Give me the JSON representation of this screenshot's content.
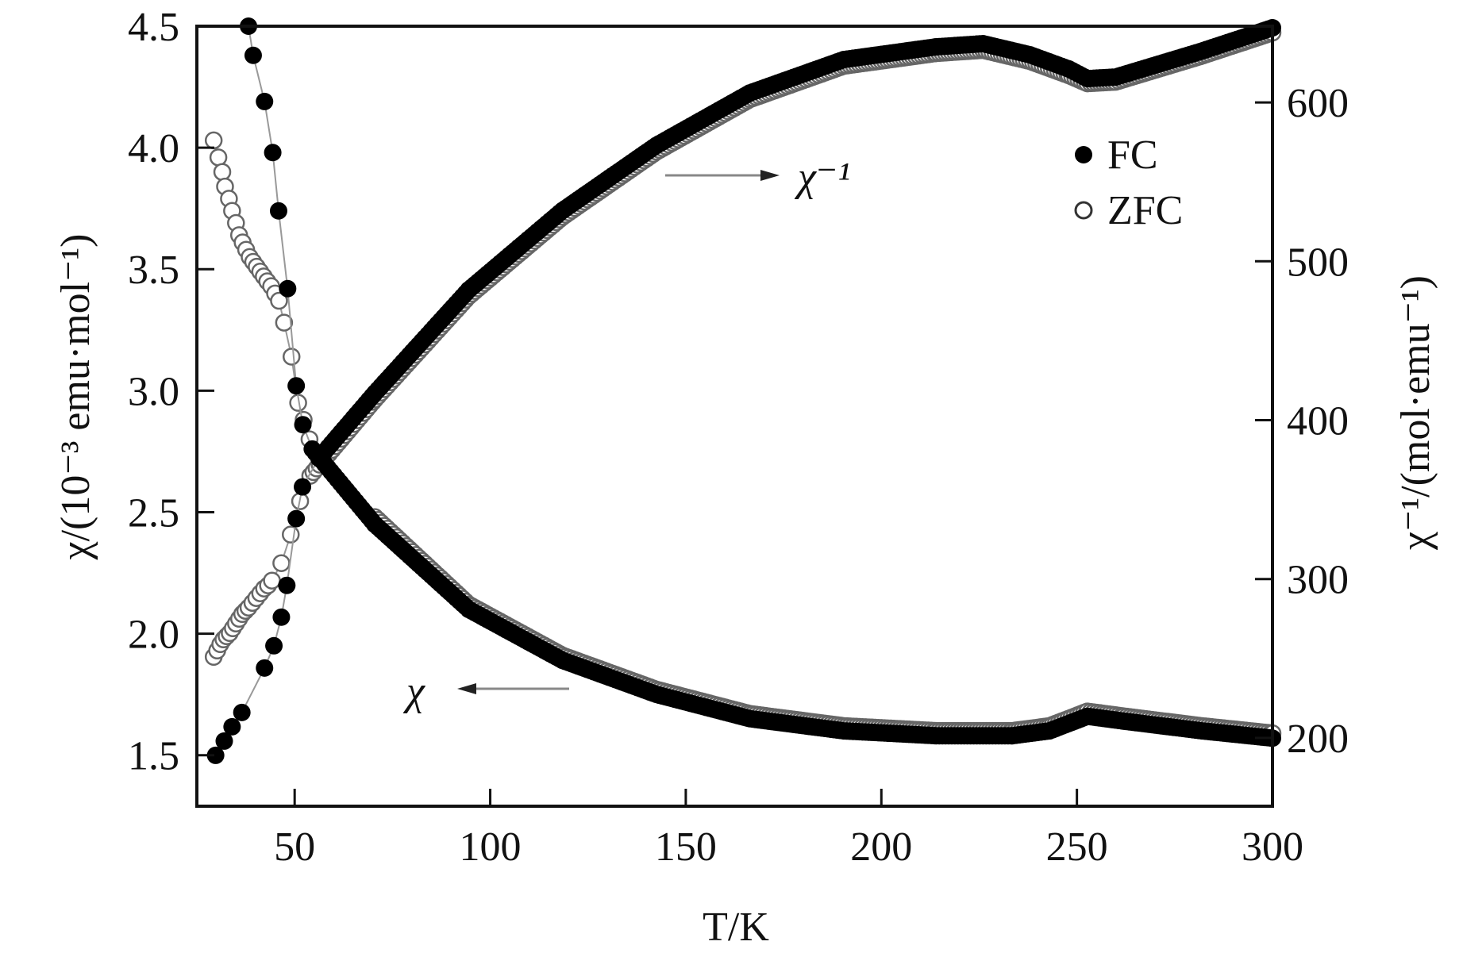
{
  "chart_data": {
    "type": "scatter",
    "title": "",
    "xlabel": "T/K",
    "ylabel_left": "χ/(10⁻³ emu·mol⁻¹)",
    "ylabel_right": "χ⁻¹/(mol·emu⁻¹)",
    "xlim": [
      25,
      300
    ],
    "ylim_left": [
      1.29,
      4.5
    ],
    "ylim_right": [
      157,
      648
    ],
    "xticks": [
      "50",
      "100",
      "150",
      "200",
      "250",
      "300"
    ],
    "yticks_left": [
      "1.5",
      "2.0",
      "2.5",
      "3.0",
      "3.5",
      "4.0",
      "4.5"
    ],
    "yticks_right": [
      "200",
      "300",
      "400",
      "500",
      "600"
    ],
    "grid": false,
    "legend": {
      "placement": "top-right",
      "entries": [
        "FC",
        "ZFC"
      ]
    },
    "annotations": {
      "chi_inv": "χ⁻¹",
      "chi": "χ"
    },
    "continuous_above_T": 55,
    "series": [
      {
        "name": "FC χ",
        "axis": "left",
        "marker": "filled",
        "x": [
          38.2,
          39.4,
          42.3,
          44.4,
          45.9,
          48.2,
          50.4,
          52.1,
          54.5,
          70.5,
          94.5,
          118.5,
          142.5,
          166.4,
          190.4,
          214,
          233.5,
          243,
          252.7,
          262,
          282,
          300
        ],
        "y": [
          4.5,
          4.38,
          4.19,
          3.98,
          3.74,
          3.42,
          3.02,
          2.86,
          2.76,
          2.45,
          2.1,
          1.89,
          1.75,
          1.65,
          1.6,
          1.58,
          1.58,
          1.6,
          1.66,
          1.64,
          1.6,
          1.57
        ]
      },
      {
        "name": "FC χ⁻¹",
        "axis": "right",
        "marker": "filled",
        "x": [
          29.8,
          32,
          34,
          36.5,
          42.3,
          44.7,
          46.6,
          48,
          50.4,
          52,
          56.2,
          70.5,
          94.5,
          118.5,
          142.5,
          166.4,
          190.4,
          214,
          226,
          238,
          248,
          252.7,
          259.9,
          281.5,
          300
        ],
        "y": [
          189,
          198,
          207,
          216,
          244,
          258,
          276,
          296,
          338,
          358,
          376,
          417,
          482,
          532,
          573,
          606,
          627,
          635,
          637,
          630,
          621,
          615,
          616,
          632,
          647
        ]
      },
      {
        "name": "ZFC χ",
        "axis": "left",
        "marker": "open",
        "x": [
          29.3,
          30.5,
          31.5,
          32.2,
          33.2,
          34,
          35,
          35.8,
          36.7,
          37.6,
          38.5,
          39.4,
          40.3,
          41.2,
          42.1,
          43,
          44,
          45,
          46,
          47.3,
          49.2,
          50.9,
          52.3,
          53.8,
          70.5,
          94.5,
          118.5,
          142.5,
          166.4,
          190.4,
          214,
          233.5,
          243,
          252.7,
          262,
          282,
          300
        ],
        "y": [
          4.03,
          3.96,
          3.9,
          3.84,
          3.79,
          3.74,
          3.69,
          3.64,
          3.61,
          3.58,
          3.55,
          3.53,
          3.51,
          3.49,
          3.47,
          3.45,
          3.43,
          3.4,
          3.37,
          3.28,
          3.14,
          2.95,
          2.88,
          2.8,
          2.48,
          2.12,
          1.91,
          1.77,
          1.67,
          1.62,
          1.6,
          1.6,
          1.62,
          1.68,
          1.66,
          1.62,
          1.59
        ]
      },
      {
        "name": "ZFC χ⁻¹",
        "axis": "right",
        "marker": "open",
        "x": [
          29.3,
          30.2,
          31,
          31.8,
          32.6,
          33.4,
          34.2,
          35,
          35.8,
          36.6,
          37.4,
          38.2,
          39.2,
          40.2,
          41.2,
          42.2,
          43.2,
          44.2,
          46.6,
          49,
          51.4,
          54,
          70.5,
          94.5,
          118.5,
          142.5,
          166.4,
          190.4,
          214,
          226,
          238,
          248,
          252.7,
          259.9,
          281.5,
          300
        ],
        "y": [
          251,
          255,
          259,
          262,
          264,
          266,
          269,
          272,
          275,
          278,
          280,
          282,
          285,
          288,
          291,
          294,
          296,
          299,
          310,
          328,
          349,
          365,
          413,
          478,
          528,
          569,
          602,
          623,
          631,
          633,
          626,
          617,
          612,
          613,
          629,
          644
        ]
      }
    ]
  }
}
